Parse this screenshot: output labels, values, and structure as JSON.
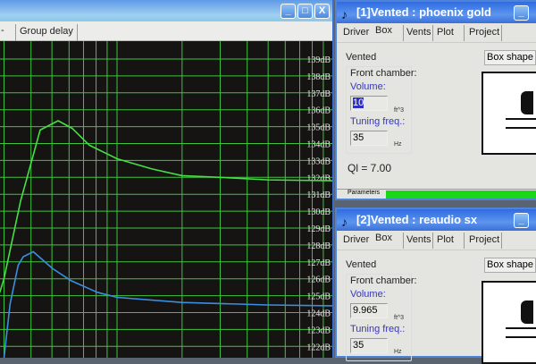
{
  "main_window": {
    "tab_partial": "-",
    "tab_group_delay": "Group delay",
    "buttons": {
      "minimize": "_",
      "maximize": "□",
      "close": "X"
    }
  },
  "panels": [
    {
      "title": "[1]Vented : phoenix gold",
      "tabs": [
        "Driver",
        "Box",
        "Vents",
        "Plot",
        "Project"
      ],
      "active_tab": "Box",
      "type": "Vented",
      "box_shape": "Box shape",
      "front_chamber": "Front chamber:",
      "volume_label": "Volume:",
      "volume": "10",
      "volume_unit": "ft^3",
      "tuning_label": "Tuning freq.:",
      "tuning": "35",
      "tuning_unit": "Hz",
      "ql": "Ql = 7.00",
      "status_label": "Parameters",
      "progress": 1.0
    },
    {
      "title": "[2]Vented : reaudio sx",
      "tabs": [
        "Driver",
        "Box",
        "Vents",
        "Plot",
        "Project"
      ],
      "active_tab": "Box",
      "type": "Vented",
      "box_shape": "Box shape",
      "front_chamber": "Front chamber:",
      "volume_label": "Volume:",
      "volume": "9.965",
      "volume_unit": "ft^3",
      "tuning_label": "Tuning freq.:",
      "tuning": "35",
      "tuning_unit": "Hz"
    }
  ],
  "chart_data": {
    "type": "line",
    "x_scale": "log",
    "xlim": [
      28.7,
      1000
    ],
    "ylim": [
      121.3,
      139.8
    ],
    "x_gridlines": [
      30,
      40,
      50,
      60,
      70,
      80,
      90,
      100,
      200,
      300,
      400,
      500,
      600,
      700,
      800,
      900
    ],
    "y_ticks": [
      "139dB",
      "138dB",
      "137dB",
      "136dB",
      "135dB",
      "134dB",
      "133dB",
      "132dB",
      "131dB",
      "130dB",
      "129dB",
      "128dB",
      "127dB",
      "126dB",
      "125dB",
      "124dB",
      "123dB",
      "122dB"
    ],
    "y_tick_values": [
      139,
      138,
      137,
      136,
      135,
      134,
      133,
      132,
      131,
      130,
      129,
      128,
      127,
      126,
      125,
      124,
      123,
      122
    ],
    "grid": true,
    "grid_color": "#3fc43f",
    "background": "#161412",
    "series": [
      {
        "color": "#44e044",
        "x": [
          28.7,
          30,
          35.8,
          38.2,
          44.1,
          53.4,
          62,
          74.5,
          100,
          145,
          200,
          300,
          500,
          1000
        ],
        "y": [
          125.2,
          126,
          130.6,
          131.9,
          134.8,
          135.35,
          134.9,
          133.9,
          133.1,
          132.5,
          132.1,
          132.0,
          131.85,
          131.8
        ]
      },
      {
        "color": "#3a8fe0",
        "x": [
          30,
          32,
          34.9,
          36.8,
          41,
          50.4,
          61,
          81,
          100,
          200,
          500,
          1000
        ],
        "y": [
          121.3,
          124.5,
          126.8,
          127.3,
          127.6,
          126.6,
          125.9,
          125.2,
          124.9,
          124.6,
          124.45,
          124.4
        ]
      }
    ]
  }
}
